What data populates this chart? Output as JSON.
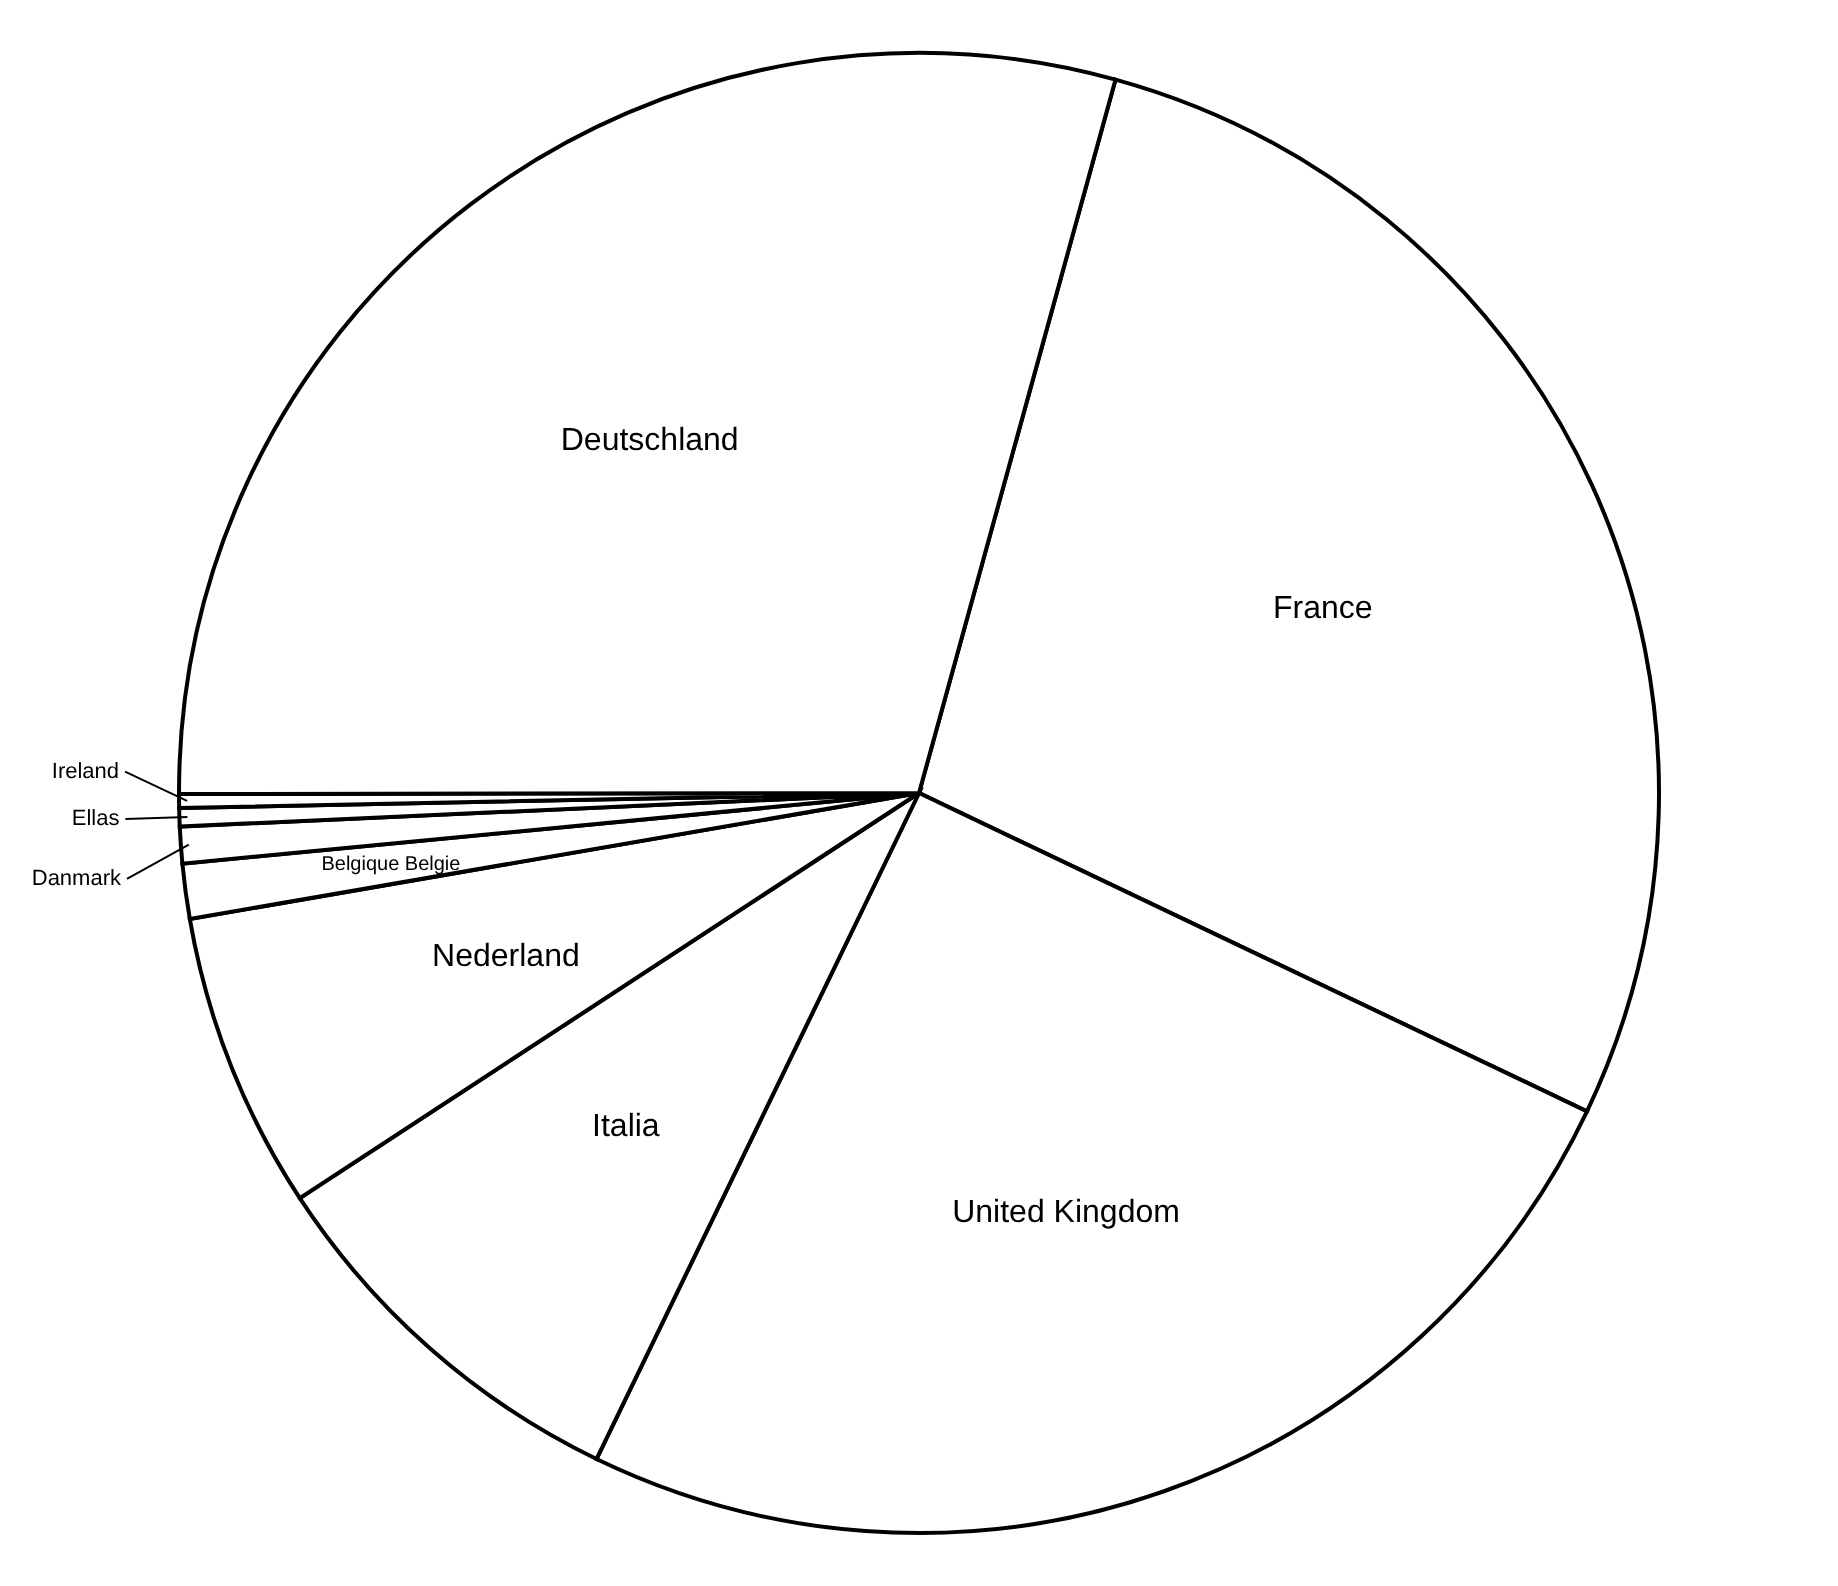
{
  "chart_data": {
    "type": "pie",
    "categories": [
      "France",
      "United Kingdom",
      "Italia",
      "Nederland",
      "Belgique Belgie",
      "Danmark",
      "Ellas",
      "Ireland",
      "Deutschland"
    ],
    "values": [
      27.8,
      25.1,
      8.6,
      6.5,
      1.2,
      0.8,
      0.4,
      0.3,
      29.3
    ],
    "colors": [
      "#ffffff",
      "#ffffff",
      "#ffffff",
      "#ffffff",
      "#ffffff",
      "#ffffff",
      "#ffffff",
      "#ffffff",
      "#ffffff"
    ]
  }
}
